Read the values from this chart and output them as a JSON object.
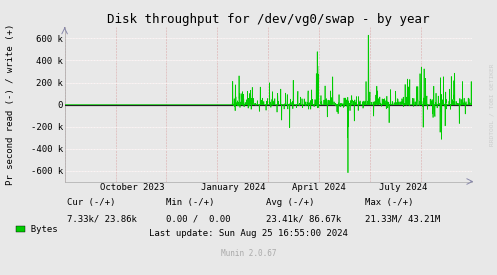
{
  "title": "Disk throughput for /dev/vg0/swap - by year",
  "ylabel": "Pr second read (-) / write (+)",
  "bg_color": "#e8e8e8",
  "plot_bg_color": "#e8e8e8",
  "line_color": "#00cc00",
  "zero_line_color": "#222222",
  "ylim": [
    -700000,
    700000
  ],
  "yticks": [
    -600000,
    -400000,
    -200000,
    0,
    200000,
    400000,
    600000
  ],
  "ytick_labels": [
    "-600 k",
    "-400 k",
    "-200 k",
    "0",
    "200 k",
    "400 k",
    "600 k"
  ],
  "xtick_labels": [
    "October 2023",
    "January 2024",
    "April 2024",
    "July 2024"
  ],
  "xtick_positions": [
    0.165,
    0.415,
    0.625,
    0.83
  ],
  "legend_label": "Bytes",
  "legend_color": "#00cc00",
  "cur_label": "Cur (-/+)",
  "min_label": "Min (-/+)",
  "avg_label": "Avg (-/+)",
  "max_label": "Max (-/+)",
  "cur_val": "7.33k/ 23.86k",
  "min_val": "0.00 /  0.00",
  "avg_val": "23.41k/ 86.67k",
  "max_val": "21.33M/ 43.21M",
  "footer_update": "Last update: Sun Aug 25 16:55:00 2024",
  "munin_version": "Munin 2.0.67",
  "watermark": "RRDTOOL / TOBI OETIKER",
  "title_fontsize": 9,
  "tick_fontsize": 6.5,
  "footer_fontsize": 6.5,
  "ylabel_fontsize": 6.5,
  "watermark_fontsize": 4.5
}
